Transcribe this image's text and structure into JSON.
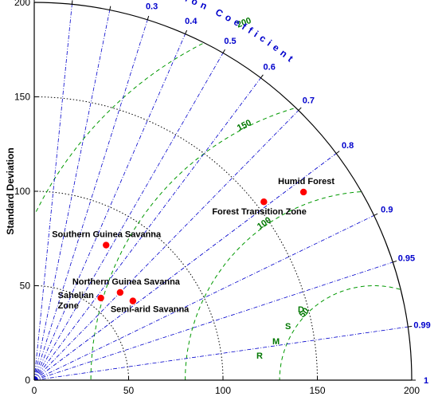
{
  "chart_data": {
    "type": "taylor",
    "ylabel": "Standard Deviation",
    "corr_label": "Correlation Coefficient",
    "rmsd_label": "RMSD",
    "std_max": 200,
    "std_ticks": [
      0,
      50,
      100,
      150,
      200
    ],
    "std_circles": [
      50,
      100,
      150
    ],
    "corr_ticks": [
      0,
      0.1,
      0.2,
      0.3,
      0.4,
      0.5,
      0.6,
      0.7,
      0.8,
      0.9,
      0.95,
      0.99,
      1
    ],
    "corr_tick_labels": [
      "0",
      "0.1",
      "0.2",
      "0.3",
      "0.4",
      "0.5",
      "0.6",
      "0.7",
      "0.8",
      "0.9",
      "0.95",
      "0.99",
      "1"
    ],
    "reference_std": 180,
    "rmsd_circles": [
      50,
      100,
      150,
      200
    ],
    "rmsd_labels": [
      "50",
      "100",
      "150",
      "200"
    ],
    "points": [
      {
        "label": "Humid Forest",
        "std": 174,
        "corr": 0.82
      },
      {
        "label": "Forest Transition Zone",
        "std": 154,
        "corr": 0.79
      },
      {
        "label": "Southern Guinea Savanna",
        "std": 81,
        "corr": 0.47
      },
      {
        "label": "Northern Guinea Savanna",
        "std": 65,
        "corr": 0.7
      },
      {
        "label": "Semi-arid Savanna",
        "std": 67,
        "corr": 0.78
      },
      {
        "label": "Sahelian Zone",
        "std": 56,
        "corr": 0.63,
        "label_lines": [
          "Sahelian",
          "Zone"
        ]
      }
    ],
    "marker_color": "#ff0000",
    "corr_line_color": "#0000cc",
    "rmsd_line_color": "#009900",
    "std_circle_color": "#000000"
  }
}
